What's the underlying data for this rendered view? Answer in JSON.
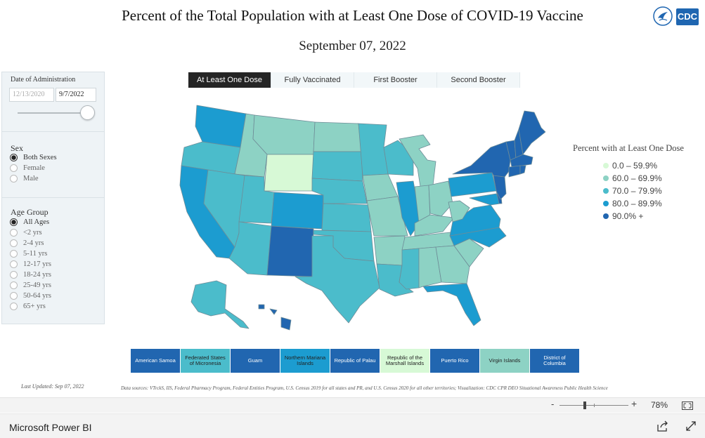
{
  "header": {
    "title": "Percent of the Total Population with at Least One Dose of COVID-19 Vaccine",
    "date": "September 07, 2022",
    "logo_text": "CDC"
  },
  "filters": {
    "date_label": "Date of Administration",
    "date_start": "12/13/2020",
    "date_end": "9/7/2022",
    "slider_level": 1.0,
    "sex_label": "Sex",
    "sex_options": [
      "Both Sexes",
      "Female",
      "Male"
    ],
    "sex_selected": "Both Sexes",
    "age_label": "Age Group",
    "age_options": [
      "All Ages",
      "<2 yrs",
      "2-4 yrs",
      "5-11 yrs",
      "12-17 yrs",
      "18-24 yrs",
      "25-49 yrs",
      "50-64 yrs",
      "65+ yrs"
    ],
    "age_selected": "All Ages"
  },
  "tabs": [
    {
      "label": "At Least One Dose",
      "active": true
    },
    {
      "label": "Fully Vaccinated",
      "active": false
    },
    {
      "label": "First Booster",
      "active": false
    },
    {
      "label": "Second Booster",
      "active": false
    }
  ],
  "legend": {
    "title": "Percent with at Least One Dose",
    "items": [
      {
        "label": "0.0 – 59.9%",
        "color": "#d7f9d6"
      },
      {
        "label": "60.0 – 69.9%",
        "color": "#8dd2c4"
      },
      {
        "label": "70.0 – 79.9%",
        "color": "#4bbccb"
      },
      {
        "label": "80.0 – 89.9%",
        "color": "#1c9cd0"
      },
      {
        "label": "90.0% +",
        "color": "#2166b0"
      }
    ]
  },
  "territories": [
    {
      "name": "American Samoa",
      "color": "#2166b0",
      "dark": true
    },
    {
      "name": "Federated States of Micronesia",
      "color": "#4bbccb",
      "dark": false
    },
    {
      "name": "Guam",
      "color": "#2166b0",
      "dark": true
    },
    {
      "name": "Northern Mariana Islands",
      "color": "#1c9cd0",
      "dark": false
    },
    {
      "name": "Republic of Palau",
      "color": "#2166b0",
      "dark": true
    },
    {
      "name": "Republic of the Marshall Islands",
      "color": "#d7f9d6",
      "dark": false
    },
    {
      "name": "Puerto Rico",
      "color": "#2166b0",
      "dark": true
    },
    {
      "name": "Virgin Islands",
      "color": "#8dd2c4",
      "dark": false
    },
    {
      "name": "District of Columbia",
      "color": "#2166b0",
      "dark": true
    }
  ],
  "footer": {
    "last_updated": "Last Updated: Sep 07, 2022",
    "sources": "Data sources: VTrckS, IIS, Federal Pharmacy Program, Federal Entities Program, U.S. Census 2019 for all states and PR, and U.S. Census 2020 for all other territories; Visualization: CDC CPR DEO Situational Awareness Public Health Science"
  },
  "zoom": {
    "minus": "-",
    "plus": "+",
    "level": "78%"
  },
  "app": {
    "name": "Microsoft Power BI"
  },
  "icons": [
    "hhs-eagle-icon",
    "fit-to-page-icon",
    "share-icon",
    "expand-icon"
  ]
}
